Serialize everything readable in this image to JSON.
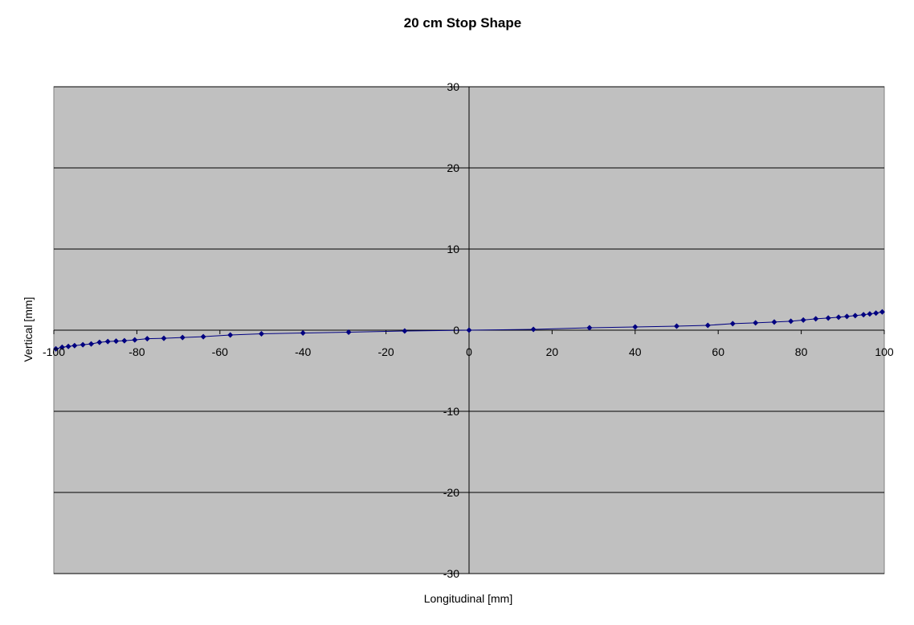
{
  "chart_data": {
    "type": "scatter",
    "title": "20 cm Stop Shape",
    "xlabel": "Longitudinal [mm]",
    "ylabel": "Vertical [mm]",
    "xlim": [
      -100,
      100
    ],
    "ylim": [
      -30,
      30
    ],
    "x_ticks": [
      "-100",
      "-80",
      "-60",
      "-40",
      "-20",
      "0",
      "20",
      "40",
      "60",
      "80",
      "100"
    ],
    "y_ticks": [
      "30",
      "20",
      "10",
      "0",
      "-10",
      "-20",
      "-30"
    ],
    "grid": "horizontal",
    "plot_background": "#c0c0c0",
    "series_color": "#000080",
    "legend": "none",
    "series": [
      {
        "x": [
          -99.5,
          -98,
          -96.5,
          -95,
          -93,
          -91,
          -89,
          -87,
          -85,
          -83,
          -80.5,
          -77.5,
          -73.5,
          -69,
          -64,
          -57.5,
          -50,
          -40,
          -29,
          -15.5,
          0,
          15.5,
          29,
          40,
          50,
          57.5,
          63.5,
          69,
          73.5,
          77.5,
          80.5,
          83.5,
          86.5,
          89,
          91,
          93,
          95,
          96.5,
          98,
          99.5
        ],
        "y": [
          -2.3,
          -2.1,
          -2.0,
          -1.9,
          -1.8,
          -1.7,
          -1.5,
          -1.4,
          -1.35,
          -1.3,
          -1.2,
          -1.05,
          -1.0,
          -0.9,
          -0.8,
          -0.6,
          -0.45,
          -0.35,
          -0.25,
          -0.1,
          0,
          0.1,
          0.3,
          0.4,
          0.5,
          0.6,
          0.8,
          0.9,
          1.0,
          1.1,
          1.25,
          1.4,
          1.5,
          1.6,
          1.7,
          1.8,
          1.9,
          2.0,
          2.1,
          2.25
        ]
      }
    ]
  }
}
